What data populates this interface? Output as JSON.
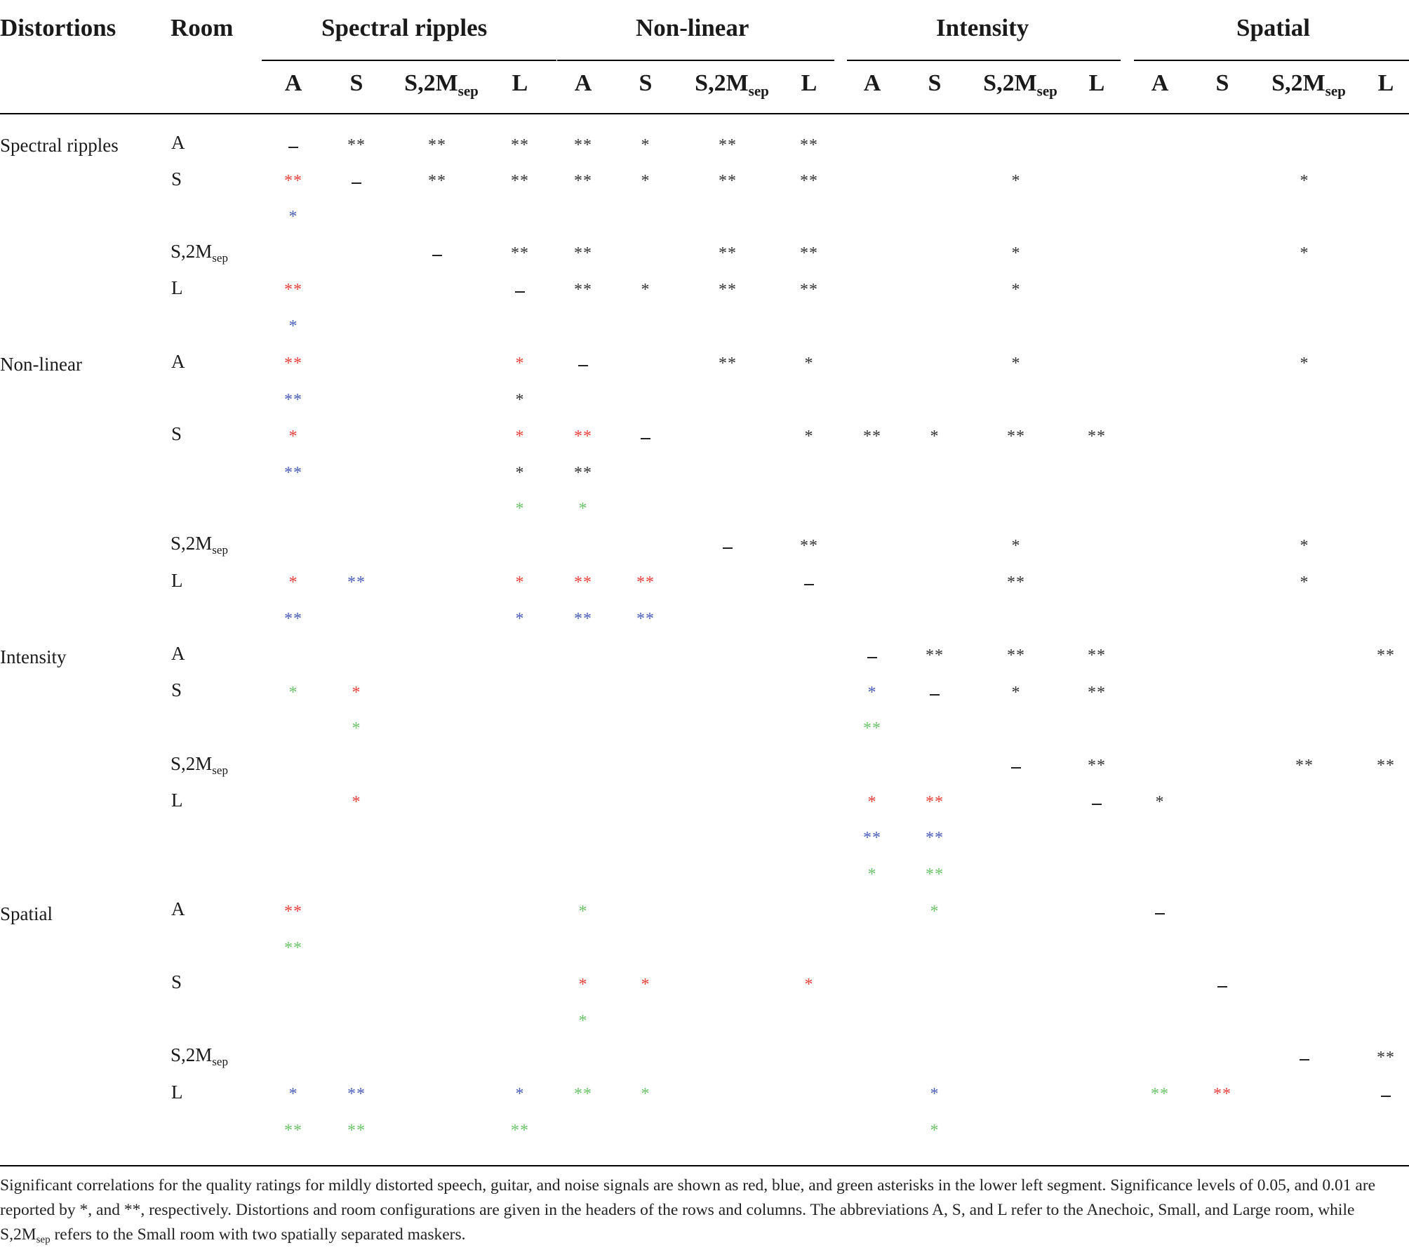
{
  "header": {
    "distortions": "Distortions",
    "room": "Room",
    "groups": [
      "Spectral ripples",
      "Non-linear",
      "Intensity",
      "Spatial"
    ],
    "subcols": [
      {
        "main": "A",
        "sub": ""
      },
      {
        "main": "S",
        "sub": ""
      },
      {
        "main": "S,2M",
        "sub": "sep"
      },
      {
        "main": "L",
        "sub": ""
      }
    ]
  },
  "row_groups": [
    {
      "label": "Spectral ripples",
      "rooms": [
        {
          "main": "A",
          "sub": ""
        },
        {
          "main": "S",
          "sub": ""
        },
        {
          "main": "S,2M",
          "sub": "sep"
        },
        {
          "main": "L",
          "sub": ""
        }
      ]
    },
    {
      "label": "Non-linear",
      "rooms": [
        {
          "main": "A",
          "sub": ""
        },
        {
          "main": "S",
          "sub": ""
        },
        {
          "main": "S,2M",
          "sub": "sep"
        },
        {
          "main": "L",
          "sub": ""
        }
      ]
    },
    {
      "label": "Intensity",
      "rooms": [
        {
          "main": "A",
          "sub": ""
        },
        {
          "main": "S",
          "sub": ""
        },
        {
          "main": "S,2M",
          "sub": "sep"
        },
        {
          "main": "L",
          "sub": ""
        }
      ]
    },
    {
      "label": "Spatial",
      "rooms": [
        {
          "main": "A",
          "sub": ""
        },
        {
          "main": "S",
          "sub": ""
        },
        {
          "main": "S,2M",
          "sub": "sep"
        },
        {
          "main": "L",
          "sub": ""
        }
      ]
    }
  ],
  "colors": {
    "k": "#333333",
    "r": "#e8413c",
    "b": "#4a5fb8",
    "g": "#6cc36a"
  },
  "cells": [
    [
      "0",
      "0",
      "dash",
      "k"
    ],
    [
      "0",
      "1",
      "**",
      "k"
    ],
    [
      "0",
      "2",
      "**",
      "k"
    ],
    [
      "0",
      "3",
      "**",
      "k"
    ],
    [
      "0",
      "4",
      "**",
      "k"
    ],
    [
      "0",
      "5",
      "*",
      "k"
    ],
    [
      "0",
      "6",
      "**",
      "k"
    ],
    [
      "0",
      "7",
      "**",
      "k"
    ],
    [
      "1",
      "0",
      "**",
      "r"
    ],
    [
      "1b",
      "0",
      "*",
      "b"
    ],
    [
      "1",
      "1",
      "dash",
      "k"
    ],
    [
      "1",
      "2",
      "**",
      "k"
    ],
    [
      "1",
      "3",
      "**",
      "k"
    ],
    [
      "1",
      "4",
      "**",
      "k"
    ],
    [
      "1",
      "5",
      "*",
      "k"
    ],
    [
      "1",
      "6",
      "**",
      "k"
    ],
    [
      "1",
      "7",
      "**",
      "k"
    ],
    [
      "1",
      "10",
      "*",
      "k"
    ],
    [
      "1",
      "14",
      "*",
      "k"
    ],
    [
      "2",
      "2",
      "dash",
      "k"
    ],
    [
      "2",
      "3",
      "**",
      "k"
    ],
    [
      "2",
      "4",
      "**",
      "k"
    ],
    [
      "2",
      "6",
      "**",
      "k"
    ],
    [
      "2",
      "7",
      "**",
      "k"
    ],
    [
      "2",
      "10",
      "*",
      "k"
    ],
    [
      "2",
      "14",
      "*",
      "k"
    ],
    [
      "3",
      "0",
      "**",
      "r"
    ],
    [
      "3b",
      "0",
      "*",
      "b"
    ],
    [
      "3",
      "3",
      "dash",
      "k"
    ],
    [
      "3",
      "4",
      "**",
      "k"
    ],
    [
      "3",
      "5",
      "*",
      "k"
    ],
    [
      "3",
      "6",
      "**",
      "k"
    ],
    [
      "3",
      "7",
      "**",
      "k"
    ],
    [
      "3",
      "10",
      "*",
      "k"
    ],
    [
      "4",
      "0",
      "**",
      "r"
    ],
    [
      "4b",
      "0",
      "**",
      "b"
    ],
    [
      "4",
      "3",
      "*",
      "r"
    ],
    [
      "4b",
      "3",
      "*",
      "k"
    ],
    [
      "4",
      "4",
      "dash",
      "k"
    ],
    [
      "4",
      "6",
      "**",
      "k"
    ],
    [
      "4",
      "7",
      "*",
      "k"
    ],
    [
      "4",
      "10",
      "*",
      "k"
    ],
    [
      "4",
      "14",
      "*",
      "k"
    ],
    [
      "5",
      "0",
      "*",
      "r"
    ],
    [
      "5b",
      "0",
      "**",
      "b"
    ],
    [
      "5",
      "3",
      "*",
      "r"
    ],
    [
      "5b",
      "3",
      "*",
      "k"
    ],
    [
      "5c",
      "3",
      "*",
      "g"
    ],
    [
      "5",
      "4",
      "**",
      "r"
    ],
    [
      "5b",
      "4",
      "**",
      "k"
    ],
    [
      "5c",
      "4",
      "*",
      "g"
    ],
    [
      "5",
      "5",
      "dash",
      "k"
    ],
    [
      "5",
      "7",
      "*",
      "k"
    ],
    [
      "5",
      "8",
      "**",
      "k"
    ],
    [
      "5",
      "9",
      "*",
      "k"
    ],
    [
      "5",
      "10",
      "**",
      "k"
    ],
    [
      "5",
      "11",
      "**",
      "k"
    ],
    [
      "6",
      "6",
      "dash",
      "k"
    ],
    [
      "6",
      "7",
      "**",
      "k"
    ],
    [
      "6",
      "10",
      "*",
      "k"
    ],
    [
      "6",
      "14",
      "*",
      "k"
    ],
    [
      "7",
      "0",
      "*",
      "r"
    ],
    [
      "7b",
      "0",
      "**",
      "b"
    ],
    [
      "7",
      "1",
      "**",
      "b"
    ],
    [
      "7",
      "3",
      "*",
      "r"
    ],
    [
      "7b",
      "3",
      "*",
      "b"
    ],
    [
      "7",
      "4",
      "**",
      "r"
    ],
    [
      "7b",
      "4",
      "**",
      "b"
    ],
    [
      "7",
      "5",
      "**",
      "r"
    ],
    [
      "7b",
      "5",
      "**",
      "b"
    ],
    [
      "7",
      "7",
      "dash",
      "k"
    ],
    [
      "7",
      "10",
      "**",
      "k"
    ],
    [
      "7",
      "14",
      "*",
      "k"
    ],
    [
      "8",
      "8",
      "dash",
      "k"
    ],
    [
      "8",
      "9",
      "**",
      "k"
    ],
    [
      "8",
      "10",
      "**",
      "k"
    ],
    [
      "8",
      "11",
      "**",
      "k"
    ],
    [
      "8",
      "15",
      "**",
      "k"
    ],
    [
      "9",
      "0",
      "*",
      "g"
    ],
    [
      "9",
      "1",
      "*",
      "r"
    ],
    [
      "9b",
      "1",
      "*",
      "g"
    ],
    [
      "9",
      "8",
      "*",
      "b"
    ],
    [
      "9b",
      "8",
      "**",
      "g"
    ],
    [
      "9",
      "9",
      "dash",
      "k"
    ],
    [
      "9",
      "10",
      "*",
      "k"
    ],
    [
      "9",
      "11",
      "**",
      "k"
    ],
    [
      "10",
      "10",
      "dash",
      "k"
    ],
    [
      "10",
      "11",
      "**",
      "k"
    ],
    [
      "10",
      "14",
      "**",
      "k"
    ],
    [
      "10",
      "15",
      "**",
      "k"
    ],
    [
      "11",
      "1",
      "*",
      "r"
    ],
    [
      "11",
      "8",
      "*",
      "r"
    ],
    [
      "11b",
      "8",
      "**",
      "b"
    ],
    [
      "11c",
      "8",
      "*",
      "g"
    ],
    [
      "11",
      "9",
      "**",
      "r"
    ],
    [
      "11b",
      "9",
      "**",
      "b"
    ],
    [
      "11c",
      "9",
      "**",
      "g"
    ],
    [
      "11",
      "11",
      "dash",
      "k"
    ],
    [
      "11",
      "12",
      "*",
      "k"
    ],
    [
      "12",
      "0",
      "**",
      "r"
    ],
    [
      "12b",
      "0",
      "**",
      "g"
    ],
    [
      "12",
      "4",
      "*",
      "g"
    ],
    [
      "12",
      "9",
      "*",
      "g"
    ],
    [
      "12",
      "12",
      "dash",
      "k"
    ],
    [
      "13",
      "4",
      "*",
      "r"
    ],
    [
      "13b",
      "4",
      "*",
      "g"
    ],
    [
      "13",
      "5",
      "*",
      "r"
    ],
    [
      "13",
      "7",
      "*",
      "r"
    ],
    [
      "13",
      "13",
      "dash",
      "k"
    ],
    [
      "14",
      "14",
      "dash",
      "k"
    ],
    [
      "14",
      "15",
      "**",
      "k"
    ],
    [
      "15",
      "0",
      "*",
      "b"
    ],
    [
      "15b",
      "0",
      "**",
      "g"
    ],
    [
      "15",
      "1",
      "**",
      "b"
    ],
    [
      "15b",
      "1",
      "**",
      "g"
    ],
    [
      "15",
      "3",
      "*",
      "b"
    ],
    [
      "15b",
      "3",
      "**",
      "g"
    ],
    [
      "15",
      "4",
      "**",
      "g"
    ],
    [
      "15",
      "5",
      "*",
      "g"
    ],
    [
      "15",
      "9",
      "*",
      "b"
    ],
    [
      "15b",
      "9",
      "*",
      "g"
    ],
    [
      "15",
      "12",
      "**",
      "g"
    ],
    [
      "15",
      "13",
      "**",
      "r"
    ],
    [
      "15",
      "15",
      "dash",
      "k"
    ]
  ],
  "footnote": {
    "part1": "Significant correlations for the quality ratings for mildly distorted speech, guitar, and noise signals are shown as red, blue, and green asterisks in the lower left segment. Significance levels of 0.05, and 0.01 are reported by *, and **, respectively. Distortions and room configurations are given in the headers of the rows and columns. The abbreviations A, S, and L refer to the Anechoic, Small, and Large room, while S,2M",
    "sub": "sep",
    "part2": " refers to the Small room with two spatially separated maskers."
  }
}
